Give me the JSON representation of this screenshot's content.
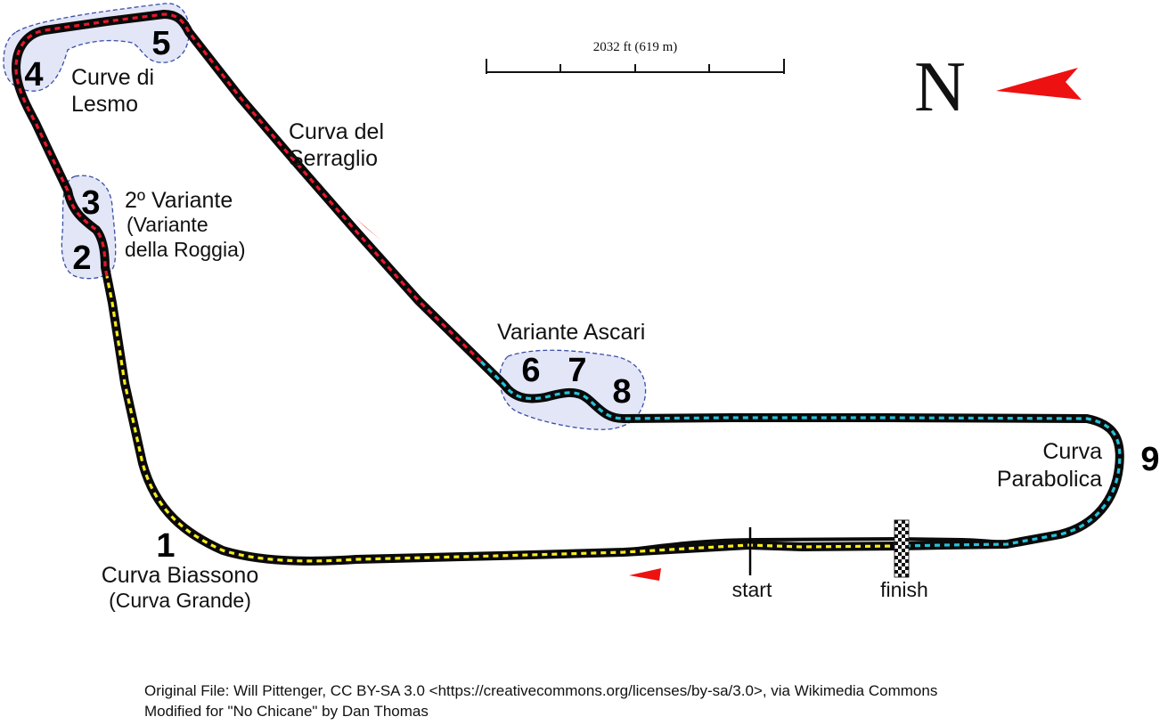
{
  "scale": {
    "label": "2032 ft (619 m)"
  },
  "north": {
    "letter": "N"
  },
  "colors": {
    "track": "#0a0a0a",
    "sector1": "#f7ea1c",
    "sector2": "#e8172b",
    "sector3": "#27c1d8",
    "chicane_fill": "#e3e6f7",
    "chicane_border": "#3a4ea8",
    "arrow": "#ee1111"
  },
  "corners": {
    "c1": "1",
    "c2": "2",
    "c3": "3",
    "c4": "4",
    "c5": "5",
    "c6": "6",
    "c7": "7",
    "c8": "8",
    "c9": "9"
  },
  "labels": {
    "lesmo_line1": "Curve di",
    "lesmo_line2": "Lesmo",
    "serraglio_line1": "Curva del",
    "serraglio_line2": "Serraglio",
    "variante2_line1": "2º Variante",
    "variante2_line2": "(Variante",
    "variante2_line3": "della Roggia)",
    "ascari": "Variante Ascari",
    "parabolica_line1": "Curva",
    "parabolica_line2": "Parabolica",
    "biassono_line1": "Curva Biassono",
    "biassono_line2": "(Curva Grande)",
    "start": "start",
    "finish": "finish"
  },
  "attribution": {
    "line1": "Original File: Will Pittenger, CC BY-SA 3.0 <https://creativecommons.org/licenses/by-sa/3.0>, via Wikimedia Commons",
    "line2": "Modified for \"No Chicane\" by Dan Thomas"
  }
}
